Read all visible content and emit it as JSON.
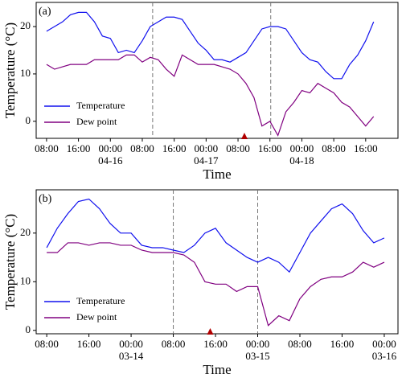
{
  "chart_data": [
    {
      "type": "line",
      "panel_label": "(a)",
      "xlabel": "Time",
      "ylabel": "Temperature (°C)",
      "x": [
        0,
        2,
        4,
        6,
        8,
        10,
        12,
        14,
        16,
        18,
        20,
        22,
        24,
        26,
        28,
        30,
        32,
        34,
        36,
        38,
        40,
        42,
        44,
        46,
        48,
        50,
        52,
        54,
        56,
        58,
        60,
        62,
        64,
        66,
        68,
        70,
        72,
        74,
        76,
        78,
        80,
        82
      ],
      "series": [
        {
          "name": "Temperature",
          "color": "#1010ee",
          "values": [
            19,
            20,
            21,
            22.5,
            23,
            23,
            21,
            18,
            17.5,
            14.5,
            15,
            14.5,
            17,
            20,
            21,
            22,
            22,
            21.5,
            19,
            16.5,
            15,
            13,
            13,
            12.5,
            13.5,
            14.5,
            17,
            19.5,
            20,
            20,
            19.5,
            17,
            14.5,
            13,
            12.5,
            10.5,
            9,
            9,
            12,
            14,
            17,
            21
          ]
        },
        {
          "name": "Dew point",
          "color": "#800080",
          "values": [
            12,
            11,
            11.5,
            12,
            12,
            12,
            13,
            13,
            13,
            13,
            14,
            14,
            12.5,
            13.5,
            13,
            11,
            9.5,
            14,
            13,
            12,
            12,
            12,
            11.5,
            11,
            10,
            8,
            5,
            -1,
            0,
            -3,
            2,
            4,
            6.5,
            6,
            8,
            7,
            6,
            4,
            3,
            1,
            -1,
            1
          ]
        }
      ],
      "xlim": [
        -2.6,
        88.1
      ],
      "ylim": [
        -3.6,
        25.1
      ],
      "yticks": [
        0,
        10,
        20
      ],
      "xticks": [
        {
          "value": 0,
          "label": "08:00"
        },
        {
          "value": 8,
          "label": "16:00"
        },
        {
          "value": 16,
          "label": "00:00"
        },
        {
          "value": 24,
          "label": "08:00"
        },
        {
          "value": 32,
          "label": "16:00"
        },
        {
          "value": 40,
          "label": "00:00"
        },
        {
          "value": 48,
          "label": "08:00"
        },
        {
          "value": 56,
          "label": "16:00"
        },
        {
          "value": 64,
          "label": "00:00"
        },
        {
          "value": 72,
          "label": "08:00"
        },
        {
          "value": 80,
          "label": "16:00"
        }
      ],
      "xdates": [
        {
          "value": 16,
          "label": "04-16"
        },
        {
          "value": 40,
          "label": "04-17"
        },
        {
          "value": 64,
          "label": "04-18"
        }
      ],
      "vlines": [
        26.6,
        56.2
      ],
      "marker_x": 49.6,
      "legend": "lower left",
      "grid": false
    },
    {
      "type": "line",
      "panel_label": "(b)",
      "xlabel": "Time",
      "ylabel": "Temperature (°C)",
      "x": [
        0,
        2,
        4,
        6,
        8,
        10,
        12,
        14,
        16,
        18,
        20,
        22,
        24,
        26,
        28,
        30,
        32,
        34,
        36,
        38,
        40,
        42,
        44,
        46,
        48,
        50,
        52,
        54,
        56,
        58,
        60,
        62,
        64
      ],
      "series": [
        {
          "name": "Temperature",
          "color": "#1010ee",
          "values": [
            17,
            21,
            24,
            26.5,
            27,
            25,
            22,
            20,
            20,
            17.5,
            17,
            17,
            16.5,
            16,
            17.5,
            20,
            21,
            18,
            16.5,
            15,
            14,
            15,
            14,
            12,
            16,
            20,
            22.5,
            25,
            26,
            24,
            20.5,
            18,
            19
          ]
        },
        {
          "name": "Dew point",
          "color": "#800080",
          "values": [
            16,
            16,
            18,
            18,
            17.5,
            18,
            18,
            17.5,
            17.5,
            16.5,
            16,
            16,
            16,
            15.5,
            14,
            10,
            9.5,
            9.5,
            8,
            9,
            9,
            1,
            3,
            2,
            6.5,
            9,
            10.5,
            11,
            11,
            12,
            14,
            13,
            14
          ]
        }
      ],
      "xlim": [
        -2,
        66.6
      ],
      "ylim": [
        -0.7,
        28.9
      ],
      "yticks": [
        0,
        10,
        20
      ],
      "xticks": [
        {
          "value": 0,
          "label": "08:00"
        },
        {
          "value": 8,
          "label": "16:00"
        },
        {
          "value": 16,
          "label": "00:00"
        },
        {
          "value": 24,
          "label": "08:00"
        },
        {
          "value": 32,
          "label": "16:00"
        },
        {
          "value": 40,
          "label": "00:00"
        },
        {
          "value": 48,
          "label": "08:00"
        },
        {
          "value": 56,
          "label": "16:00"
        },
        {
          "value": 64,
          "label": "00:00"
        }
      ],
      "xdates": [
        {
          "value": 16,
          "label": "03-14"
        },
        {
          "value": 40,
          "label": "03-15"
        },
        {
          "value": 64,
          "label": "03-16"
        }
      ],
      "vlines": [
        24,
        40
      ],
      "marker_x": 31,
      "legend": "lower left",
      "grid": false
    }
  ]
}
